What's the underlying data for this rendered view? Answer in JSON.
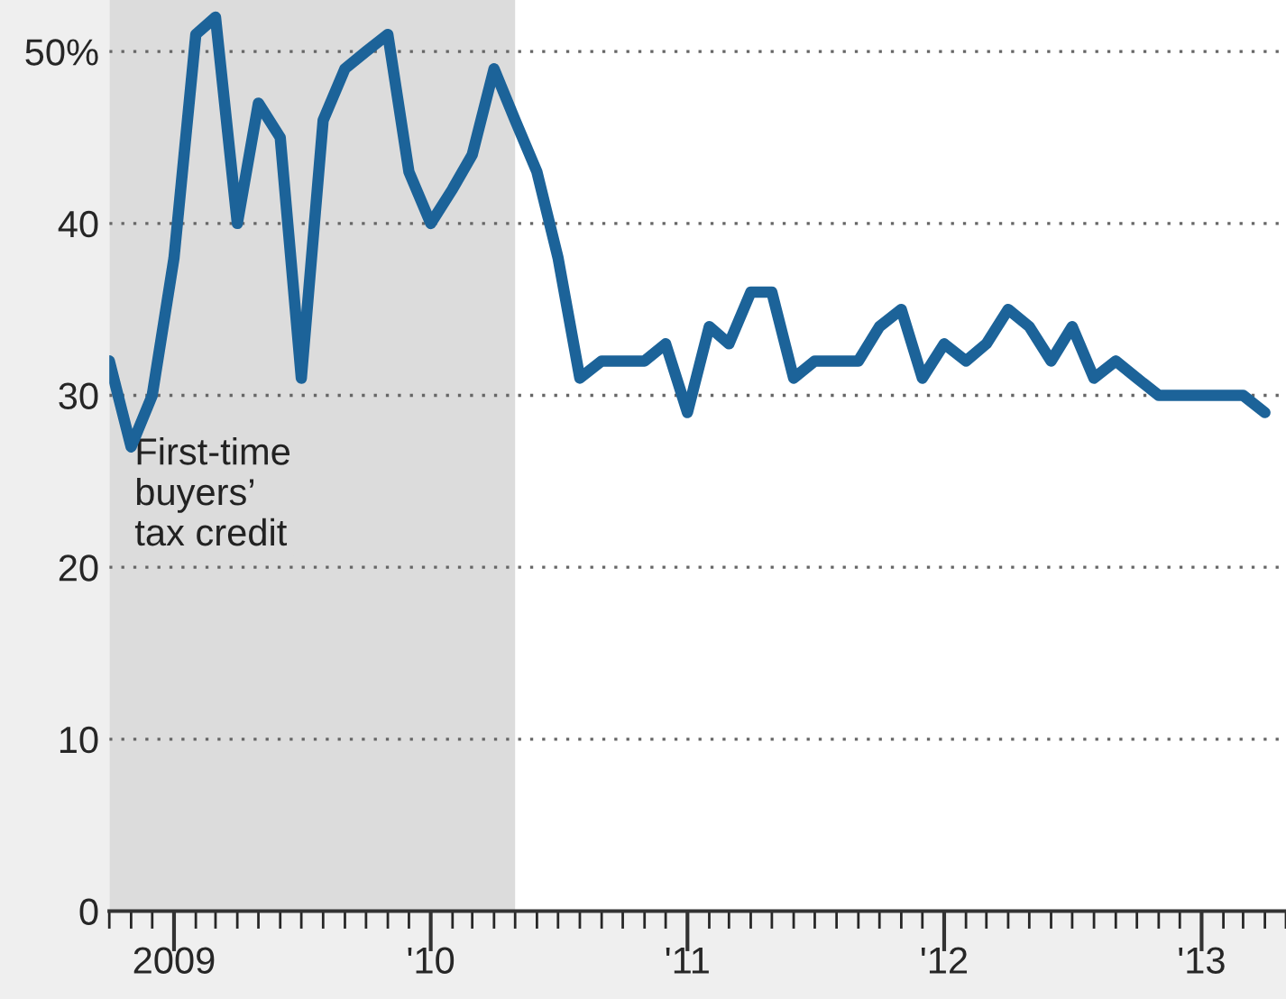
{
  "chart_data": {
    "type": "line",
    "x": [
      "2008-10",
      "2008-11",
      "2008-12",
      "2009-01",
      "2009-02",
      "2009-03",
      "2009-04",
      "2009-05",
      "2009-06",
      "2009-07",
      "2009-08",
      "2009-09",
      "2009-10",
      "2009-11",
      "2009-12",
      "2010-01",
      "2010-02",
      "2010-03",
      "2010-04",
      "2010-05",
      "2010-06",
      "2010-07",
      "2010-08",
      "2010-09",
      "2010-10",
      "2010-11",
      "2010-12",
      "2011-01",
      "2011-02",
      "2011-03",
      "2011-04",
      "2011-05",
      "2011-06",
      "2011-07",
      "2011-08",
      "2011-09",
      "2011-10",
      "2011-11",
      "2011-12",
      "2012-01",
      "2012-02",
      "2012-03",
      "2012-04",
      "2012-05",
      "2012-06",
      "2012-07",
      "2012-08",
      "2012-09",
      "2012-10",
      "2012-11",
      "2012-12",
      "2013-01",
      "2013-02",
      "2013-03",
      "2013-04"
    ],
    "series": [
      {
        "color": "#1c6399",
        "values": [
          32,
          27,
          30,
          38,
          51,
          52,
          40,
          47,
          45,
          31,
          46,
          49,
          50,
          51,
          43,
          40,
          42,
          44,
          49,
          46,
          43,
          38,
          31,
          32,
          32,
          32,
          33,
          29,
          34,
          33,
          36,
          36,
          31,
          32,
          32,
          32,
          34,
          35,
          31,
          33,
          32,
          33,
          35,
          34,
          32,
          34,
          31,
          32,
          31,
          30,
          30,
          30,
          30,
          30,
          29
        ]
      }
    ],
    "xlim": [
      "2008-10",
      "2013-05"
    ],
    "xticks": [
      {
        "value": "2009-01",
        "label": "2009"
      },
      {
        "value": "2010-01",
        "label": "'10"
      },
      {
        "value": "2011-01",
        "label": "'11"
      },
      {
        "value": "2012-01",
        "label": "'12"
      },
      {
        "value": "2013-01",
        "label": "'13"
      }
    ],
    "ylim": [
      0,
      53
    ],
    "yticks": [
      0,
      10,
      20,
      30,
      40,
      {
        "value": 50,
        "label": "50%"
      }
    ],
    "grid": "y",
    "line_style": "solid",
    "marker": "none",
    "bands": [
      {
        "axis": "x",
        "from": "2008-10",
        "to": "2010-05",
        "label": "First-time\nbuyers’\ntax credit",
        "color": "#dcdcdc"
      }
    ]
  }
}
